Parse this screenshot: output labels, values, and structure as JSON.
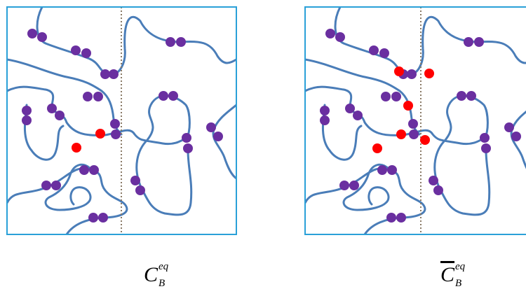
{
  "panels": [
    {
      "label": {
        "symbol": "C",
        "superscript": "eq",
        "subscript": "B"
      }
    },
    {
      "label": {
        "symbol": "C",
        "superscript": "eq",
        "subscript": "B"
      }
    }
  ]
}
